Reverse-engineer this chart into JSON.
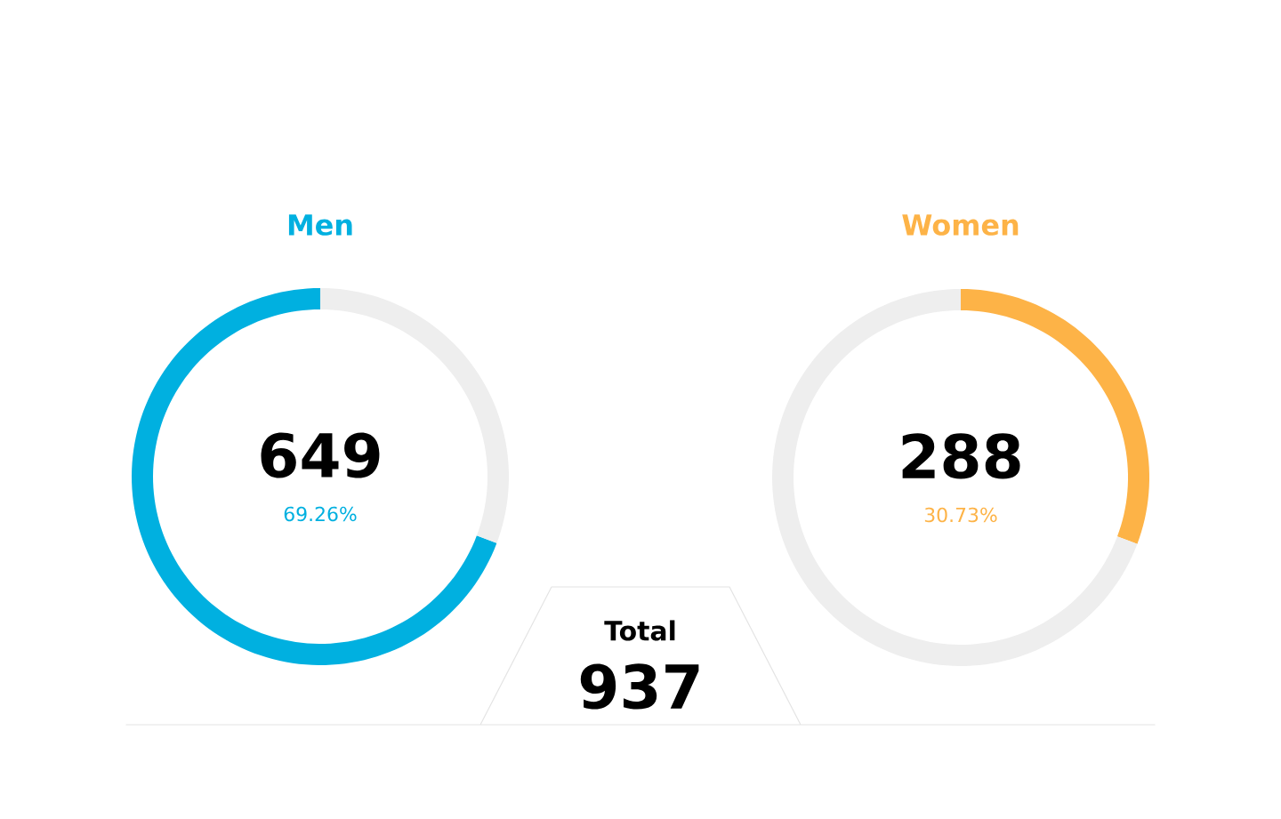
{
  "chart_data": [
    {
      "type": "donut",
      "title": "Men",
      "categories": [
        null,
        null
      ],
      "values": [
        69.26,
        30.74
      ],
      "colors": [
        "#00b0e0",
        "#eeeeee"
      ],
      "annotations": [
        "649",
        "69.26%"
      ]
    },
    {
      "type": "donut",
      "title": "Women",
      "categories": [
        null,
        null
      ],
      "values": [
        30.73,
        69.27
      ],
      "colors": [
        "#fdb347",
        "#eeeeee"
      ],
      "annotations": [
        "288",
        "30.73%"
      ]
    },
    {
      "type": "other",
      "title": "Total",
      "annotations": [
        "937"
      ]
    }
  ]
}
